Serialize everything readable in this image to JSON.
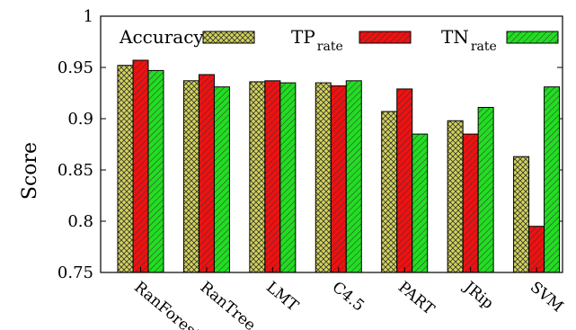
{
  "chart_data": {
    "type": "bar",
    "ylabel": "Score",
    "ylim": [
      0.75,
      1.0
    ],
    "yticks": [
      "0.75",
      "0.8",
      "0.85",
      "0.9",
      "0.95",
      "1"
    ],
    "grid": false,
    "legend_position": "top",
    "categories": [
      "RanForest",
      "RanTree",
      "LMT",
      "C4.5",
      "PART",
      "JRip",
      "SVM"
    ],
    "series": [
      {
        "name": "Accuracy",
        "sub": "",
        "color": "#d4d45a",
        "pattern": "crosshatch",
        "values": [
          0.952,
          0.937,
          0.936,
          0.935,
          0.907,
          0.898,
          0.863
        ]
      },
      {
        "name": "TP",
        "sub": "rate",
        "color": "#ee1111",
        "pattern": "diagonal",
        "values": [
          0.957,
          0.943,
          0.937,
          0.932,
          0.929,
          0.885,
          0.795
        ]
      },
      {
        "name": "TN",
        "sub": "rate",
        "color": "#22dd22",
        "pattern": "diagonal",
        "values": [
          0.947,
          0.931,
          0.935,
          0.937,
          0.885,
          0.911,
          0.931
        ]
      }
    ]
  }
}
